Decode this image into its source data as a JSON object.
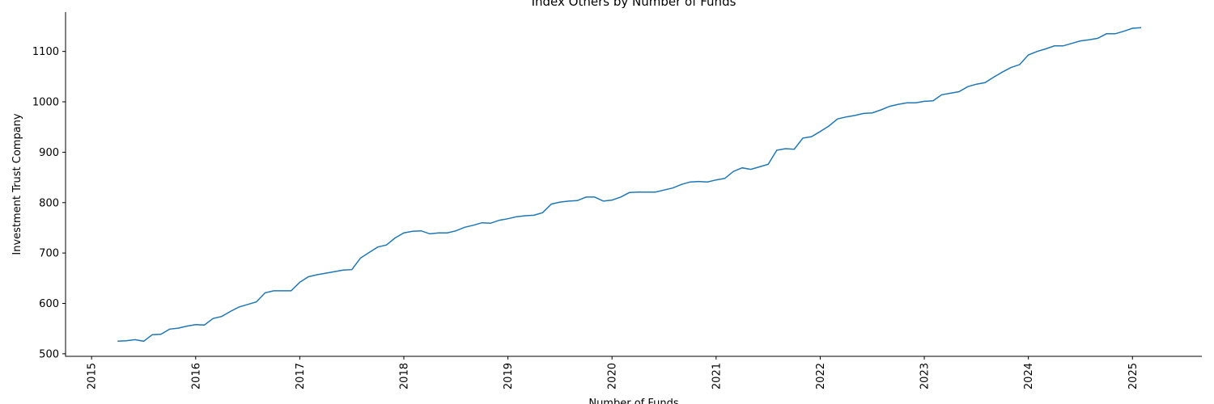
{
  "chart_data": {
    "type": "line",
    "title": "Index Others by Number of Funds",
    "xlabel": "Number of Funds",
    "ylabel": "Investment Trust Company",
    "x_ticks": [
      "2015",
      "2016",
      "2017",
      "2018",
      "2019",
      "2020",
      "2021",
      "2022",
      "2023",
      "2024",
      "2025"
    ],
    "y_ticks": [
      "500",
      "600",
      "700",
      "800",
      "900",
      "1000",
      "1100"
    ],
    "xlim": [
      "2014-10-01",
      "2025-09-01"
    ],
    "ylim": [
      495,
      1178
    ],
    "grid": false,
    "legend": "none",
    "line_color": "#1f77b4",
    "series": [
      {
        "x": [
          "2015-04",
          "2015-05",
          "2015-06",
          "2015-07",
          "2015-08",
          "2015-09",
          "2015-10",
          "2015-11",
          "2015-12",
          "2016-01",
          "2016-02",
          "2016-03",
          "2016-04",
          "2016-05",
          "2016-06",
          "2016-07",
          "2016-08",
          "2016-09",
          "2016-10",
          "2016-11",
          "2016-12",
          "2017-01",
          "2017-02",
          "2017-03",
          "2017-04",
          "2017-05",
          "2017-06",
          "2017-07",
          "2017-08",
          "2017-09",
          "2017-10",
          "2017-11",
          "2017-12",
          "2018-01",
          "2018-02",
          "2018-03",
          "2018-04",
          "2018-05",
          "2018-06",
          "2018-07",
          "2018-08",
          "2018-09",
          "2018-10",
          "2018-11",
          "2018-12",
          "2019-01",
          "2019-02",
          "2019-03",
          "2019-04",
          "2019-05",
          "2019-06",
          "2019-07",
          "2019-08",
          "2019-09",
          "2019-10",
          "2019-11",
          "2019-12",
          "2020-01",
          "2020-02",
          "2020-03",
          "2020-04",
          "2020-05",
          "2020-06",
          "2020-07",
          "2020-08",
          "2020-09",
          "2020-10",
          "2020-11",
          "2020-12",
          "2021-01",
          "2021-02",
          "2021-03",
          "2021-04",
          "2021-05",
          "2021-06",
          "2021-07",
          "2021-08",
          "2021-09",
          "2021-10",
          "2021-11",
          "2021-12",
          "2022-01",
          "2022-02",
          "2022-03",
          "2022-04",
          "2022-05",
          "2022-06",
          "2022-07",
          "2022-08",
          "2022-09",
          "2022-10",
          "2022-11",
          "2022-12",
          "2023-01",
          "2023-02",
          "2023-03",
          "2023-04",
          "2023-05",
          "2023-06",
          "2023-07",
          "2023-08",
          "2023-09",
          "2023-10",
          "2023-11",
          "2023-12",
          "2024-01",
          "2024-02",
          "2024-03",
          "2024-04",
          "2024-05",
          "2024-06",
          "2024-07",
          "2024-08",
          "2024-09",
          "2024-10",
          "2024-11",
          "2024-12",
          "2025-01",
          "2025-02"
        ],
        "y": [
          525,
          526,
          528,
          525,
          538,
          539,
          549,
          551,
          555,
          558,
          557,
          570,
          574,
          584,
          593,
          598,
          603,
          621,
          625,
          625,
          625,
          642,
          653,
          657,
          660,
          663,
          666,
          667,
          690,
          701,
          712,
          716,
          730,
          740,
          743,
          744,
          738,
          740,
          740,
          744,
          751,
          755,
          760,
          759,
          765,
          768,
          772,
          774,
          775,
          780,
          797,
          801,
          803,
          804,
          811,
          811,
          803,
          805,
          811,
          820,
          821,
          821,
          821,
          825,
          829,
          836,
          841,
          842,
          841,
          845,
          848,
          862,
          869,
          866,
          871,
          876,
          904,
          907,
          906,
          928,
          931,
          941,
          952,
          966,
          970,
          973,
          977,
          978,
          984,
          991,
          995,
          998,
          998,
          1001,
          1002,
          1014,
          1017,
          1020,
          1030,
          1035,
          1038,
          1049,
          1059,
          1068,
          1074,
          1093,
          1100,
          1105,
          1111,
          1111,
          1116,
          1121,
          1123,
          1126,
          1135,
          1135,
          1140,
          1146,
          1147
        ]
      }
    ]
  }
}
